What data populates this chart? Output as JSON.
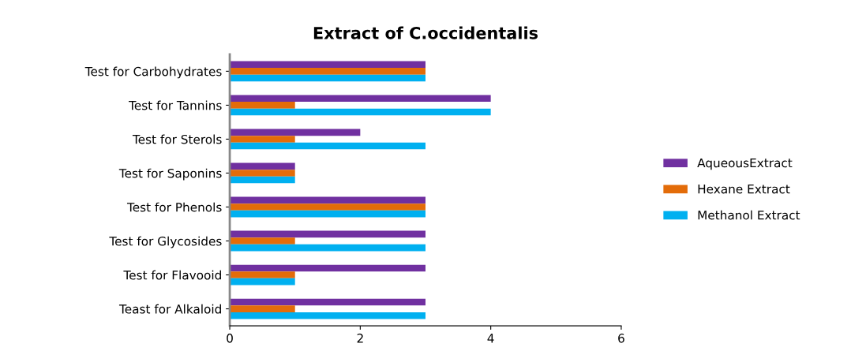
{
  "chart_data": {
    "type": "bar",
    "orientation": "horizontal",
    "title": "Extract of C.occidentalis",
    "categories": [
      "Test for Carbohydrates",
      "Test for Tannins",
      "Test for Sterols",
      "Test for Saponins",
      "Test for Phenols",
      "Test for Glycosides",
      "Test for Flavooid",
      "Teast for Alkaloid"
    ],
    "series": [
      {
        "name": "AqueousExtract",
        "color": "#7030a0",
        "values": [
          3,
          4,
          2,
          1,
          3,
          3,
          3,
          3
        ]
      },
      {
        "name": "Hexane Extract",
        "color": "#e36c09",
        "values": [
          3,
          1,
          1,
          1,
          3,
          1,
          1,
          1
        ]
      },
      {
        "name": "Methanol Extract",
        "color": "#00b0f0",
        "values": [
          3,
          4,
          3,
          1,
          3,
          3,
          1,
          3
        ]
      }
    ],
    "xlim": [
      0,
      6
    ],
    "xticks": [
      0,
      2,
      4,
      6
    ],
    "legend": "right"
  }
}
